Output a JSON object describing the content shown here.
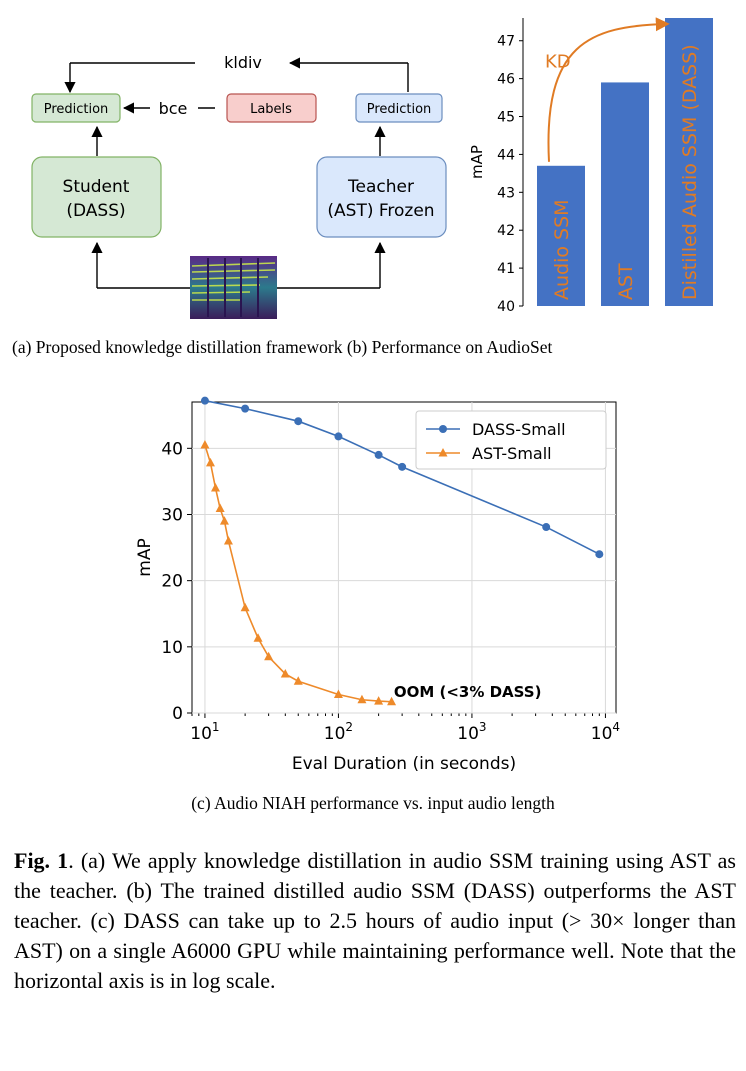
{
  "diagram": {
    "kldiv_label": "kldiv",
    "bce_label": "bce",
    "student_prediction": "Prediction",
    "teacher_prediction": "Prediction",
    "labels_box": "Labels",
    "student_line1": "Student",
    "student_line2": "(DASS)",
    "teacher_line1": "Teacher",
    "teacher_line2": "(AST) Frozen",
    "colors": {
      "student_fill": "#d5e8d4",
      "student_stroke": "#82b366",
      "teacher_fill": "#dae8fc",
      "teacher_stroke": "#6c8ebf",
      "labels_fill": "#f8cecc",
      "labels_stroke": "#b85450"
    },
    "spectrogram_icon": "spectrogram-image"
  },
  "bar_chart": {
    "chart_data": {
      "type": "bar",
      "categories": [
        "Audio SSM",
        "AST",
        "Distilled Audio SSM (DASS)"
      ],
      "values": [
        43.7,
        45.9,
        47.6
      ],
      "ylabel": "mAP",
      "ylim": [
        40,
        47.6
      ],
      "yticks": [
        40,
        41,
        42,
        43,
        44,
        45,
        46,
        47
      ],
      "annotation": "KD",
      "bar_color": "#4472c4",
      "label_color": "#e07b24"
    }
  },
  "line_chart": {
    "chart_data": {
      "type": "line",
      "xscale": "log",
      "xlabel": "Eval Duration (in seconds)",
      "ylabel": "mAP",
      "xlim": [
        8,
        12000
      ],
      "ylim": [
        0,
        47
      ],
      "yticks": [
        0,
        10,
        20,
        30,
        40
      ],
      "xticks": [
        "10^1",
        "10^2",
        "10^3",
        "10^4"
      ],
      "legend_position": "top-right",
      "annotation": "OOM (<3% DASS)",
      "series": [
        {
          "name": "DASS-Small",
          "color": "#3b6fb6",
          "marker": "circle",
          "x": [
            10,
            20,
            50,
            100,
            200,
            300,
            3600,
            9000
          ],
          "y": [
            47.2,
            46.0,
            44.1,
            41.8,
            39.0,
            37.2,
            28.1,
            24.0
          ]
        },
        {
          "name": "AST-Small",
          "color": "#ee8a2a",
          "marker": "triangle",
          "x": [
            10,
            11,
            12,
            13,
            14,
            15,
            20,
            25,
            30,
            40,
            50,
            100,
            150,
            200,
            250
          ],
          "y": [
            40.5,
            37.8,
            34.0,
            30.9,
            29.0,
            26.0,
            15.9,
            11.3,
            8.5,
            5.9,
            4.8,
            2.8,
            2.0,
            1.8,
            1.7
          ]
        }
      ]
    }
  },
  "captions": {
    "ab": "(a) Proposed knowledge distillation framework (b) Performance on AudioSet",
    "c": "(c) Audio NIAH performance vs. input audio length",
    "main_label": "Fig. 1",
    "main_text": ". (a) We apply knowledge distillation in audio SSM training using AST as the teacher. (b) The trained distilled audio SSM (DASS) outperforms the AST teacher. (c) DASS can take up to 2.5 hours of audio input (> 30× longer than AST) on a single A6000 GPU while maintaining performance well. Note that the horizontal axis is in log scale."
  }
}
